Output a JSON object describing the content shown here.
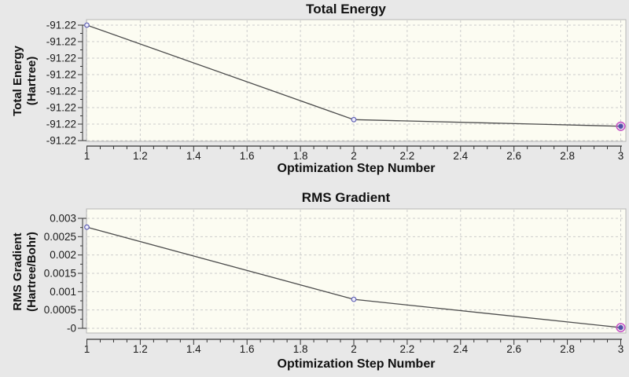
{
  "colors": {
    "page_bg": "#e8e8e8",
    "plot_bg": "#fcfcf2",
    "plot_border": "#b6b6b6",
    "grid": "#cccccc",
    "axis": "#333333",
    "tick_label": "#1a1a1a",
    "series_line": "#4d4d4d",
    "marker_stroke": "#6161b5",
    "marker_fill": "#eeeefc",
    "selected_fill": "#4f4fa5",
    "highlight_ring": "#c653c6"
  },
  "chart_data": [
    {
      "type": "line",
      "title": "Total Energy",
      "xlabel": "Optimization Step Number",
      "ylabel_lines": [
        "Total Energy",
        "(Hartree)"
      ],
      "xlim": [
        1,
        3
      ],
      "x_minor_step": 0.05,
      "x_ticks": [
        {
          "v": 1,
          "label": "1"
        },
        {
          "v": 1.2,
          "label": "1.2"
        },
        {
          "v": 1.4,
          "label": "1.4"
        },
        {
          "v": 1.6,
          "label": "1.6"
        },
        {
          "v": 1.8,
          "label": "1.8"
        },
        {
          "v": 2,
          "label": "2"
        },
        {
          "v": 2.2,
          "label": "2.2"
        },
        {
          "v": 2.4,
          "label": "2.4"
        },
        {
          "v": 2.6,
          "label": "2.6"
        },
        {
          "v": 2.8,
          "label": "2.8"
        },
        {
          "v": 3,
          "label": "3"
        }
      ],
      "ylim": [
        0,
        7
      ],
      "y_minor_step": 0.5,
      "y_ticks": [
        {
          "v": 7,
          "label": "-91.22"
        },
        {
          "v": 6,
          "label": "-91.22"
        },
        {
          "v": 5,
          "label": "-91.22"
        },
        {
          "v": 4,
          "label": "-91.22"
        },
        {
          "v": 3,
          "label": "-91.22"
        },
        {
          "v": 2,
          "label": "-91.22"
        },
        {
          "v": 1,
          "label": "-91.22"
        },
        {
          "v": 0,
          "label": "-91.22"
        }
      ],
      "grid": true,
      "legend": "none",
      "series": [
        {
          "name": "Total Energy",
          "x": [
            1,
            2,
            3
          ],
          "y": [
            7.0,
            1.27,
            0.87
          ],
          "displayed_values": [
            "-91.22",
            "-91.22",
            "-91.22"
          ],
          "highlight_last": true
        }
      ]
    },
    {
      "type": "line",
      "title": "RMS Gradient",
      "xlabel": "Optimization Step Number",
      "ylabel_lines": [
        "RMS Gradient",
        "(Hartree/Bohr)"
      ],
      "xlim": [
        1,
        3
      ],
      "x_minor_step": 0.05,
      "x_ticks": [
        {
          "v": 1,
          "label": "1"
        },
        {
          "v": 1.2,
          "label": "1.2"
        },
        {
          "v": 1.4,
          "label": "1.4"
        },
        {
          "v": 1.6,
          "label": "1.6"
        },
        {
          "v": 1.8,
          "label": "1.8"
        },
        {
          "v": 2,
          "label": "2"
        },
        {
          "v": 2.2,
          "label": "2.2"
        },
        {
          "v": 2.4,
          "label": "2.4"
        },
        {
          "v": 2.6,
          "label": "2.6"
        },
        {
          "v": 2.8,
          "label": "2.8"
        },
        {
          "v": 3,
          "label": "3"
        }
      ],
      "ylim": [
        0,
        0.003
      ],
      "y_minor_step": 0.00025,
      "y_ticks": [
        {
          "v": 0.003,
          "label": "0.003"
        },
        {
          "v": 0.0025,
          "label": "0.0025"
        },
        {
          "v": 0.002,
          "label": "0.002"
        },
        {
          "v": 0.0015,
          "label": "0.0015"
        },
        {
          "v": 0.001,
          "label": "0.001"
        },
        {
          "v": 0.0005,
          "label": "0.0005"
        },
        {
          "v": 0,
          "label": "-0"
        }
      ],
      "grid": true,
      "legend": "none",
      "series": [
        {
          "name": "RMS Gradient",
          "x": [
            1,
            2,
            3
          ],
          "y": [
            0.00276,
            0.00079,
            2e-05
          ],
          "highlight_last": true
        }
      ]
    }
  ]
}
